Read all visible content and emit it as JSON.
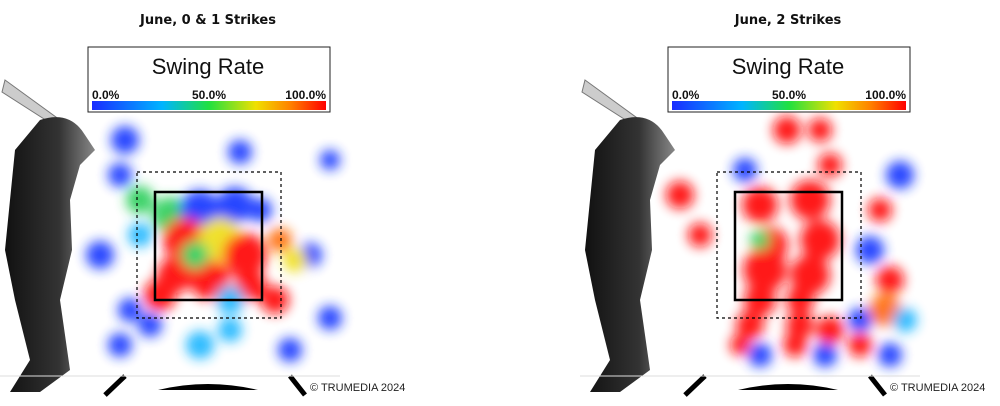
{
  "panels": [
    {
      "title": "June, 0 & 1 Strikes",
      "legend": {
        "title": "Swing Rate",
        "ticks": [
          "0.0%",
          "50.0%",
          "100.0%"
        ]
      },
      "credit": "© TRUMEDIA 2024"
    },
    {
      "title": "June, 2 Strikes",
      "legend": {
        "title": "Swing Rate",
        "ticks": [
          "0.0%",
          "50.0%",
          "100.0%"
        ]
      },
      "credit": "© TRUMEDIA 2024"
    }
  ]
}
